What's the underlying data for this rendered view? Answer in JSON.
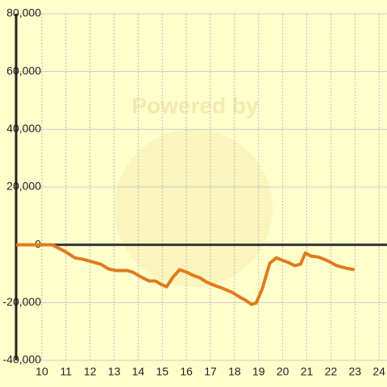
{
  "chart_data": {
    "type": "line",
    "watermark": "Powered by",
    "x": [
      8.93,
      10.43,
      10.94,
      11.37,
      11.71,
      12.1,
      12.44,
      12.78,
      13.1,
      13.55,
      13.78,
      14.11,
      14.45,
      14.72,
      14.95,
      15.18,
      15.45,
      15.72,
      16.02,
      16.29,
      16.56,
      16.82,
      17.12,
      17.49,
      17.89,
      18.16,
      18.46,
      18.7,
      18.9,
      19.16,
      19.46,
      19.73,
      19.97,
      20.23,
      20.5,
      20.74,
      20.94,
      21.17,
      21.47,
      21.81,
      22.24,
      22.64,
      22.98
    ],
    "series": [
      {
        "color": "#e07b20",
        "values": [
          0,
          0,
          -2200,
          -4500,
          -5000,
          -5900,
          -6700,
          -8400,
          -8900,
          -8900,
          -9500,
          -11100,
          -12500,
          -12500,
          -13700,
          -14500,
          -11100,
          -8600,
          -9500,
          -10600,
          -11400,
          -12800,
          -13900,
          -15000,
          -16400,
          -17800,
          -19200,
          -20600,
          -20100,
          -15000,
          -6400,
          -4500,
          -5300,
          -6100,
          -7200,
          -6700,
          -2800,
          -3900,
          -4200,
          -5300,
          -7200,
          -8100,
          -8600
        ]
      }
    ],
    "xlim": [
      8.93,
      24.33
    ],
    "xticks": [
      10,
      11,
      12,
      13,
      14,
      15,
      16,
      17,
      18,
      19,
      20,
      21,
      22,
      23,
      24
    ],
    "ylim": [
      -40000,
      80000
    ],
    "yticks": [
      {
        "value": -40000,
        "label": "-40,000"
      },
      {
        "value": -20000,
        "label": "-20,000"
      },
      0,
      {
        "value": 20000,
        "label": "20,000"
      },
      {
        "value": 40000,
        "label": "40,000"
      },
      {
        "value": 60000,
        "label": "60,000"
      },
      {
        "value": 80000,
        "label": "80,000"
      }
    ],
    "grid": true
  }
}
